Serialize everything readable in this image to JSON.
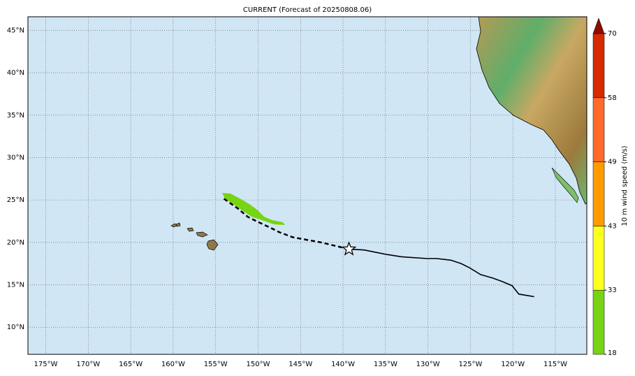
{
  "title": "CURRENT (Forecast of 20250808.06)",
  "map": {
    "lonlim": [
      -177.1,
      -111.3
    ],
    "latlim": [
      6.8,
      46.6
    ],
    "xticks": [
      {
        "value": -175,
        "label": "175°W"
      },
      {
        "value": -170,
        "label": "170°W"
      },
      {
        "value": -165,
        "label": "165°W"
      },
      {
        "value": -160,
        "label": "160°W"
      },
      {
        "value": -155,
        "label": "155°W"
      },
      {
        "value": -150,
        "label": "150°W"
      },
      {
        "value": -145,
        "label": "145°W"
      },
      {
        "value": -140,
        "label": "140°W"
      },
      {
        "value": -135,
        "label": "135°W"
      },
      {
        "value": -130,
        "label": "130°W"
      },
      {
        "value": -125,
        "label": "125°W"
      },
      {
        "value": -120,
        "label": "120°W"
      },
      {
        "value": -115,
        "label": "115°W"
      }
    ],
    "yticks": [
      {
        "value": 10,
        "label": "10°N"
      },
      {
        "value": 15,
        "label": "15°N"
      },
      {
        "value": 20,
        "label": "20°N"
      },
      {
        "value": 25,
        "label": "25°N"
      },
      {
        "value": 30,
        "label": "30°N"
      },
      {
        "value": 35,
        "label": "35°N"
      },
      {
        "value": 40,
        "label": "40°N"
      },
      {
        "value": 45,
        "label": "45°N"
      }
    ],
    "past_track": {
      "lon": [
        -117.5,
        -119.3,
        -120.1,
        -121.3,
        -122.4,
        -123.8,
        -125.1,
        -126.1,
        -127.3,
        -129.0,
        -130.2,
        -133.1,
        -135.0,
        -137.5,
        -139.3
      ],
      "lat": [
        13.6,
        13.9,
        14.9,
        15.4,
        15.8,
        16.2,
        17.0,
        17.5,
        17.9,
        18.1,
        18.1,
        18.3,
        18.6,
        19.1,
        19.2
      ]
    },
    "forecast_track": {
      "lon": [
        -139.3,
        -142.6,
        -145.9,
        -147.5,
        -148.7,
        -150.0,
        -151.2,
        -152.4,
        -154.1
      ],
      "lat": [
        19.2,
        20.0,
        20.6,
        21.2,
        21.8,
        22.4,
        23.0,
        24.0,
        25.2
      ]
    }
  },
  "colorbar": {
    "label": "10 m wind speed (m/s)",
    "levels": [
      18,
      33,
      43,
      49,
      58,
      70
    ],
    "colors": [
      "#77d414",
      "#ffff1e",
      "#ff9a00",
      "#ff6a2a",
      "#d62a00"
    ],
    "extend_color": "#8b0d00"
  }
}
